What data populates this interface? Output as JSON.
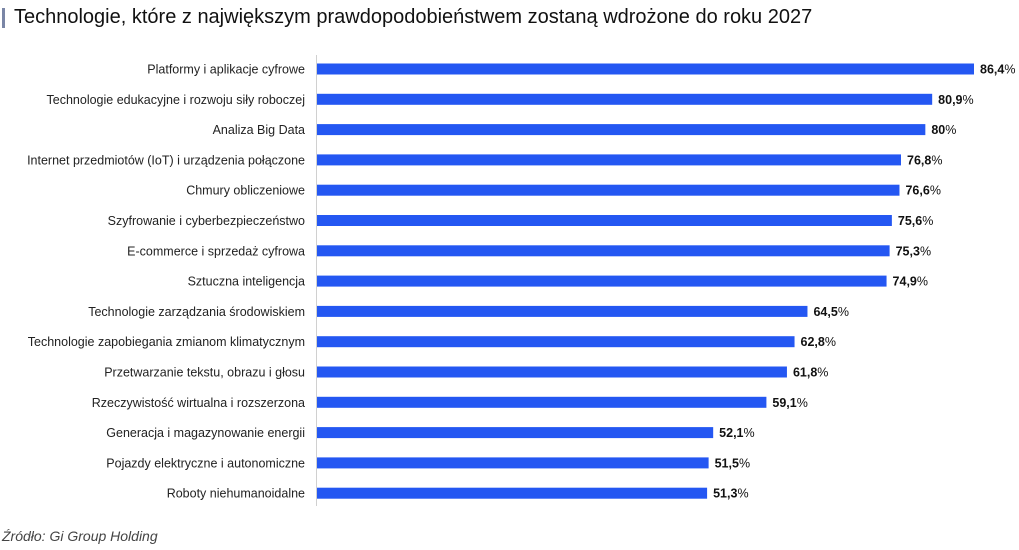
{
  "chart_data": {
    "type": "bar",
    "orientation": "horizontal",
    "title": "Technologie, które z największym prawdopodobieństwem zostaną wdrożone do roku 2027",
    "source": "Źródło: Gi Group Holding",
    "categories": [
      "Platformy i aplikacje cyfrowe",
      "Technologie edukacyjne i rozwoju siły roboczej",
      "Analiza Big Data",
      "Internet przedmiotów (IoT) i urządzenia połączone",
      "Chmury obliczeniowe",
      "Szyfrowanie i cyberbezpieczeństwo",
      "E-commerce i sprzedaż cyfrowa",
      "Sztuczna inteligencja",
      "Technologie zarządzania środowiskiem",
      "Technologie zapobiegania zmianom klimatycznym",
      "Przetwarzanie tekstu, obrazu i głosu",
      "Rzeczywistość wirtualna i rozszerzona",
      "Generacja i magazynowanie energii",
      "Pojazdy elektryczne i autonomiczne",
      "Roboty niehumanoidalne"
    ],
    "values": [
      86.4,
      80.9,
      80,
      76.8,
      76.6,
      75.6,
      75.3,
      74.9,
      64.5,
      62.8,
      61.8,
      59.1,
      52.1,
      51.5,
      51.3
    ],
    "value_labels": [
      "86,4",
      "80,9",
      "80",
      "76,8",
      "76,6",
      "75,6",
      "75,3",
      "74,9",
      "64,5",
      "62,8",
      "61,8",
      "59,1",
      "52,1",
      "51,5",
      "51,3"
    ],
    "unit": "%",
    "xlim": [
      0,
      86.4
    ],
    "grid": false,
    "bar_color": "#2457f2"
  }
}
